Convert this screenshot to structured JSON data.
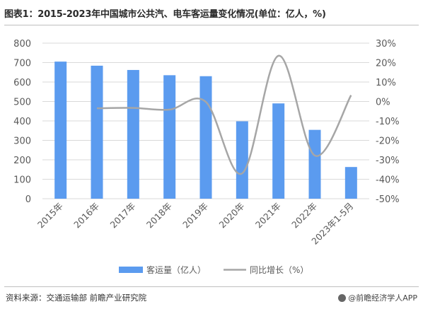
{
  "title": "图表1：2015-2023年中国城市公共汽、电车客运量变化情况(单位：亿人，%)",
  "source": "资料来源：交通运输部 前瞻产业研究院",
  "credit": "@前瞻经济学人APP",
  "colors": {
    "bar": "#5b9bef",
    "line": "#a6a6a6",
    "axis_text": "#595959",
    "grid": "#d9d9d9"
  },
  "chart_data": {
    "type": "bar",
    "categories": [
      "2015年",
      "2016年",
      "2017年",
      "2018年",
      "2019年",
      "2020年",
      "2021年",
      "2022年",
      "2023年1-5月"
    ],
    "ylim": [
      0,
      800
    ],
    "yticks": [
      0,
      100,
      200,
      300,
      400,
      500,
      600,
      700,
      800
    ],
    "y2lim": [
      -50,
      30
    ],
    "y2ticks": [
      "30%",
      "20%",
      "10%",
      "0%",
      "-10%",
      "-20%",
      "-30%",
      "-40%",
      "-50%"
    ],
    "series": [
      {
        "name": "客运量（亿人）",
        "type": "bar",
        "axis": "left",
        "values": [
          705,
          684,
          662,
          635,
          630,
          398,
          490,
          354,
          163
        ]
      },
      {
        "name": "同比增长（%）",
        "type": "line",
        "axis": "right",
        "smooth": true,
        "values": [
          null,
          -3.5,
          -3.3,
          -4.2,
          -0.2,
          -37,
          23.5,
          -27.8,
          3.2
        ]
      }
    ]
  }
}
